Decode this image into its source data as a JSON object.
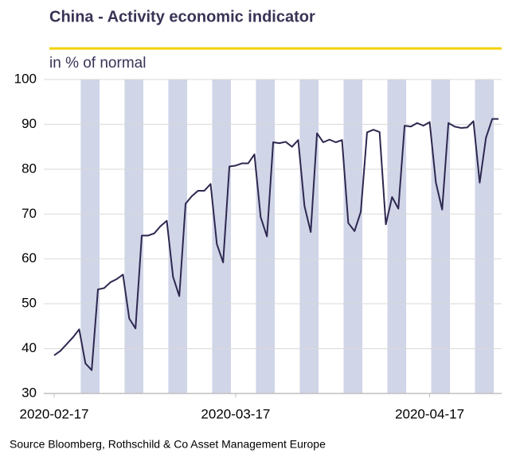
{
  "chart_data": {
    "type": "line",
    "title": "China - Activity economic indicator",
    "subtitle": "in % of normal",
    "source": "Source Bloomberg, Rothschild & Co Asset Management  Europe",
    "x": [
      "2020-02-17",
      "2020-02-18",
      "2020-02-19",
      "2020-02-20",
      "2020-02-21",
      "2020-02-22",
      "2020-02-23",
      "2020-02-24",
      "2020-02-25",
      "2020-02-26",
      "2020-02-27",
      "2020-02-28",
      "2020-02-29",
      "2020-03-01",
      "2020-03-02",
      "2020-03-03",
      "2020-03-04",
      "2020-03-05",
      "2020-03-06",
      "2020-03-07",
      "2020-03-08",
      "2020-03-09",
      "2020-03-10",
      "2020-03-11",
      "2020-03-12",
      "2020-03-13",
      "2020-03-14",
      "2020-03-15",
      "2020-03-16",
      "2020-03-17",
      "2020-03-18",
      "2020-03-19",
      "2020-03-20",
      "2020-03-21",
      "2020-03-22",
      "2020-03-23",
      "2020-03-24",
      "2020-03-25",
      "2020-03-26",
      "2020-03-27",
      "2020-03-28",
      "2020-03-29",
      "2020-03-30",
      "2020-03-31",
      "2020-04-01",
      "2020-04-02",
      "2020-04-03",
      "2020-04-04",
      "2020-04-05",
      "2020-04-06",
      "2020-04-07",
      "2020-04-08",
      "2020-04-09",
      "2020-04-10",
      "2020-04-11",
      "2020-04-12",
      "2020-04-13",
      "2020-04-14",
      "2020-04-15",
      "2020-04-16",
      "2020-04-17",
      "2020-04-18",
      "2020-04-19",
      "2020-04-20",
      "2020-04-21",
      "2020-04-22",
      "2020-04-23",
      "2020-04-24",
      "2020-04-25",
      "2020-04-26",
      "2020-04-27",
      "2020-04-28"
    ],
    "series": [
      {
        "name": "Activity indicator",
        "color": "#2e2850",
        "values": [
          38.5,
          39.5,
          41,
          42.5,
          44.3,
          36.7,
          35.2,
          53.2,
          53.5,
          54.8,
          55.5,
          56.5,
          46.7,
          44.5,
          65.2,
          65.2,
          65.7,
          67.3,
          68.5,
          56,
          51.7,
          72.3,
          74,
          75.2,
          75.2,
          76.7,
          63.3,
          59.2,
          80.6,
          80.8,
          81.3,
          81.3,
          83.3,
          69.3,
          65,
          86,
          85.8,
          86.1,
          85,
          86.5,
          71.8,
          66,
          88,
          86,
          86.6,
          86,
          86.5,
          68,
          66.2,
          70.5,
          88.2,
          88.8,
          88.3,
          67.7,
          73.8,
          71.2,
          89.7,
          89.5,
          90.3,
          89.7,
          90.5,
          77,
          71,
          90.3,
          89.5,
          89.2,
          89.3,
          90.7,
          77,
          87,
          91.2,
          91.2
        ]
      }
    ],
    "xticks": [
      "2020-02-17",
      "2020-03-17",
      "2020-04-17"
    ],
    "ylim": [
      30,
      100
    ],
    "yticks": [
      30,
      40,
      50,
      60,
      70,
      80,
      90,
      100
    ],
    "grid": true,
    "weekend_shading": "#d0d5e8"
  }
}
